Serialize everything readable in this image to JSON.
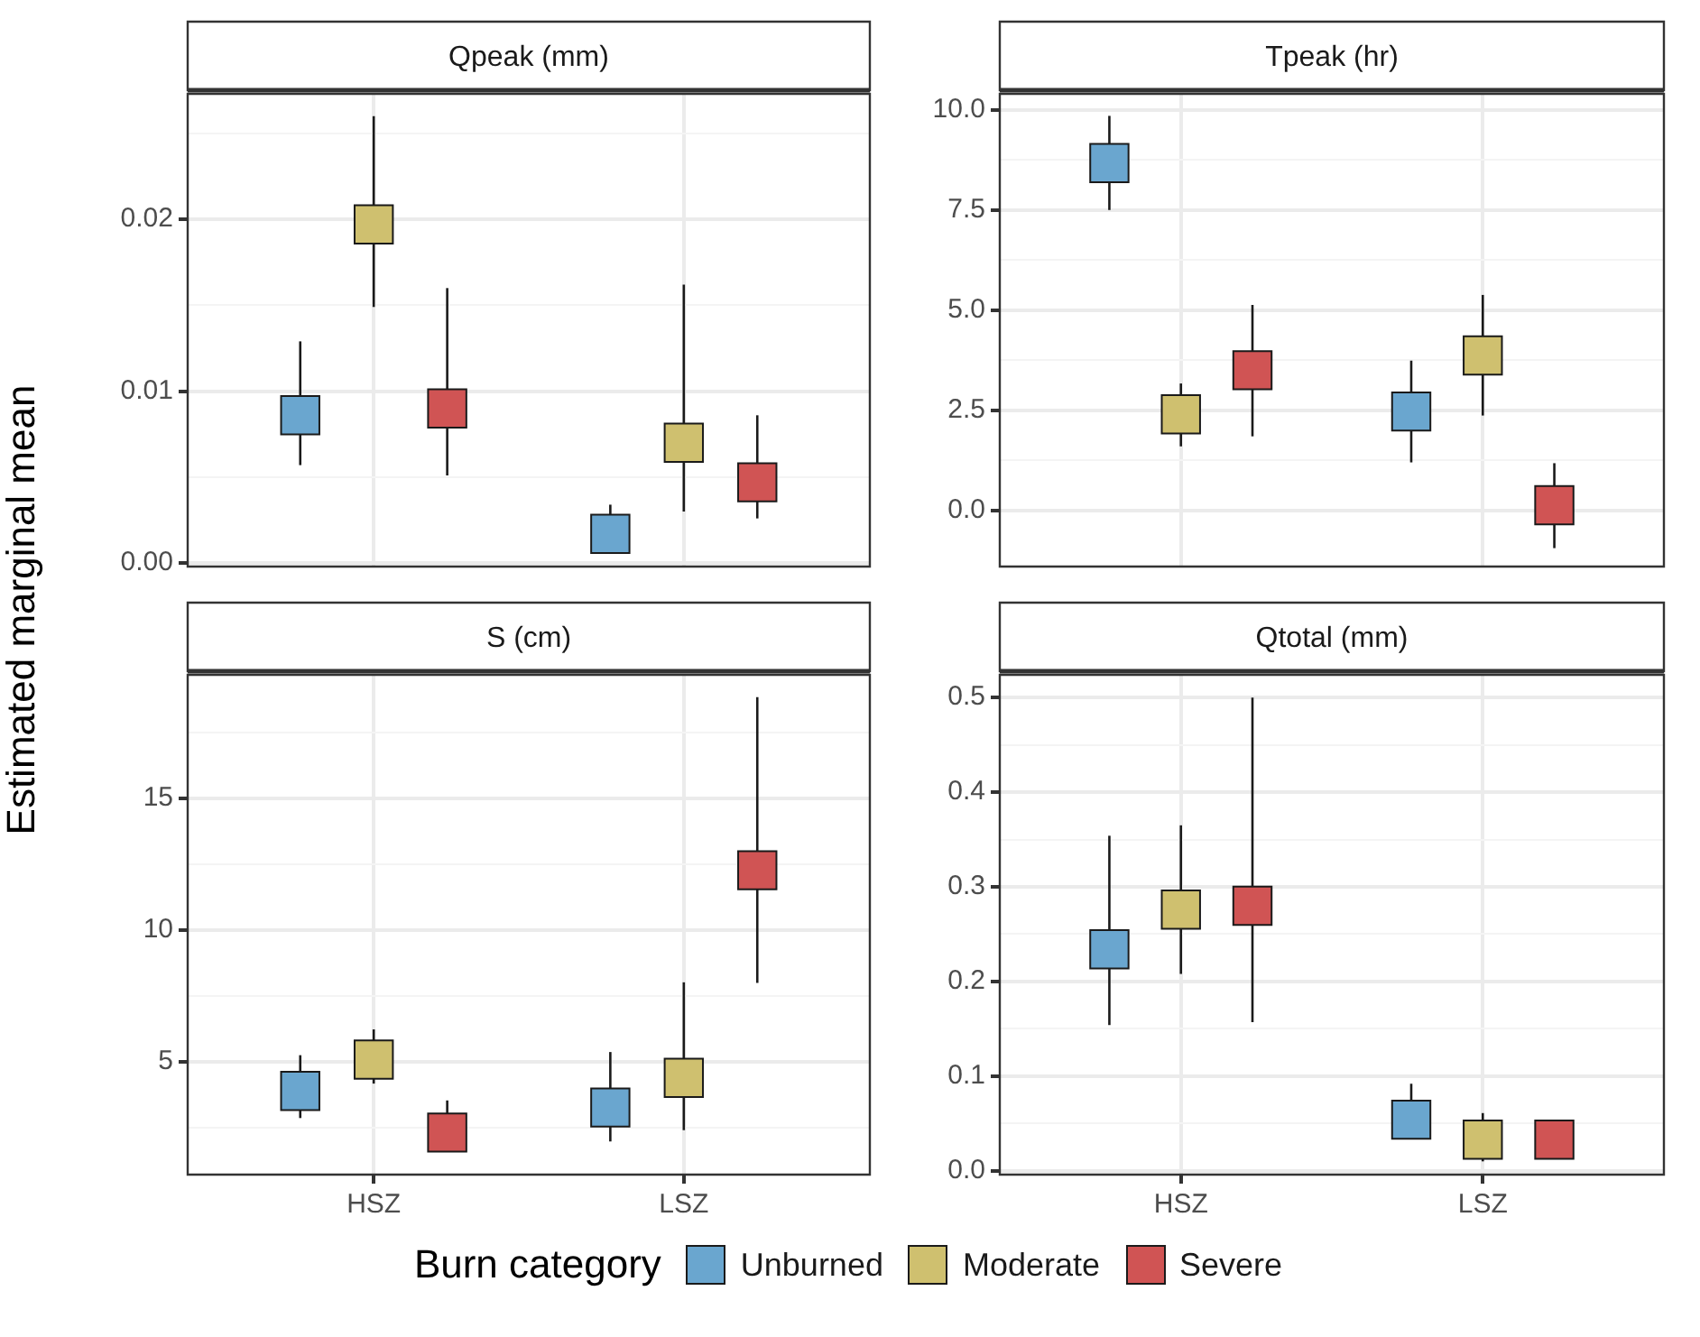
{
  "chart_data": [
    {
      "type": "scatter",
      "title": "Qpeak (mm)",
      "ylabel": "Estimated marginal mean",
      "categories": [
        null,
        null
      ],
      "marker": "square",
      "grid": true,
      "tick_labels": "y",
      "ylim": [
        -0.0002,
        0.0273
      ],
      "yticks": [
        {
          "value": 0,
          "label": "0.00"
        },
        {
          "value": 0.005,
          "label": null
        },
        0.01,
        {
          "value": 0.015,
          "label": null
        },
        0.02,
        {
          "value": 0.025,
          "label": null
        }
      ],
      "series": [
        {
          "color": "#6aa6cf",
          "values": [
            0.0086,
            0.0017
          ],
          "errors": [
            [
              0.0057,
              0.0129
            ],
            [
              0.0008,
              0.0034
            ]
          ]
        },
        {
          "color": "#cfc06f",
          "values": [
            0.0197,
            0.007
          ],
          "errors": [
            [
              0.0149,
              0.026
            ],
            [
              0.003,
              0.0162
            ]
          ]
        },
        {
          "color": "#d05454",
          "values": [
            0.009,
            0.0047
          ],
          "errors": [
            [
              0.0051,
              0.016
            ],
            [
              0.0026,
              0.0086
            ]
          ]
        }
      ]
    },
    {
      "type": "scatter",
      "title": "Tpeak (hr)",
      "categories": [
        null,
        null
      ],
      "marker": "square",
      "grid": true,
      "tick_labels": "y",
      "ylim": [
        -1.4,
        10.4
      ],
      "yticks": [
        {
          "value": 0,
          "label": "0.0"
        },
        {
          "value": 1.25,
          "label": null
        },
        2.5,
        {
          "value": 3.75,
          "label": null
        },
        {
          "value": 5,
          "label": "5.0"
        },
        {
          "value": 6.25,
          "label": null
        },
        7.5,
        {
          "value": 8.75,
          "label": null
        },
        {
          "value": 10,
          "label": "10.0"
        }
      ],
      "series": [
        {
          "color": "#6aa6cf",
          "values": [
            8.67,
            2.47
          ],
          "errors": [
            [
              7.5,
              9.85
            ],
            [
              1.2,
              3.74
            ]
          ]
        },
        {
          "color": "#cfc06f",
          "values": [
            2.4,
            3.87
          ],
          "errors": [
            [
              1.6,
              3.17
            ],
            [
              2.37,
              5.38
            ]
          ]
        },
        {
          "color": "#d05454",
          "values": [
            3.5,
            0.13
          ],
          "errors": [
            [
              1.85,
              5.13
            ],
            [
              -0.94,
              1.18
            ]
          ]
        }
      ]
    },
    {
      "type": "scatter",
      "title": "S (cm)",
      "categories": [
        "HSZ",
        "LSZ"
      ],
      "marker": "square",
      "grid": true,
      "ylim": [
        0.7,
        19.7
      ],
      "yticks": [
        {
          "value": 2.5,
          "label": null
        },
        5,
        {
          "value": 7.5,
          "label": null
        },
        10,
        {
          "value": 12.5,
          "label": null
        },
        15,
        {
          "value": 17.5,
          "label": null
        }
      ],
      "series": [
        {
          "color": "#6aa6cf",
          "values": [
            3.88,
            3.25
          ],
          "errors": [
            [
              2.85,
              5.24
            ],
            [
              1.96,
              5.36
            ]
          ]
        },
        {
          "color": "#cfc06f",
          "values": [
            5.07,
            4.38
          ],
          "errors": [
            [
              4.16,
              6.22
            ],
            [
              2.39,
              8.01
            ]
          ]
        },
        {
          "color": "#d05454",
          "values": [
            2.3,
            12.27
          ],
          "errors": [
            [
              1.8,
              3.52
            ],
            [
              7.99,
              18.85
            ]
          ]
        }
      ]
    },
    {
      "type": "scatter",
      "title": "Qtotal (mm)",
      "categories": [
        "HSZ",
        "LSZ"
      ],
      "marker": "square",
      "grid": true,
      "legend": "bottom",
      "legend_title": "Burn category",
      "ylim": [
        -0.004,
        0.524
      ],
      "yticks": [
        {
          "value": 0,
          "label": "0.0"
        },
        {
          "value": 0.05,
          "label": null
        },
        0.1,
        {
          "value": 0.15,
          "label": null
        },
        0.2,
        {
          "value": 0.25,
          "label": null
        },
        0.3,
        {
          "value": 0.35,
          "label": null
        },
        0.4,
        {
          "value": 0.45,
          "label": null
        },
        0.5
      ],
      "series": [
        {
          "name": "Unburned",
          "color": "#6aa6cf",
          "values": [
            0.234,
            0.054
          ],
          "errors": [
            [
              0.154,
              0.354
            ],
            [
              0.035,
              0.092
            ]
          ]
        },
        {
          "name": "Moderate",
          "color": "#cfc06f",
          "values": [
            0.276,
            0.033
          ],
          "errors": [
            [
              0.208,
              0.365
            ],
            [
              0.01,
              0.061
            ]
          ]
        },
        {
          "name": "Severe",
          "color": "#d05454",
          "values": [
            0.28,
            0.033
          ],
          "errors": [
            [
              0.157,
              0.5
            ],
            null
          ]
        }
      ]
    }
  ]
}
